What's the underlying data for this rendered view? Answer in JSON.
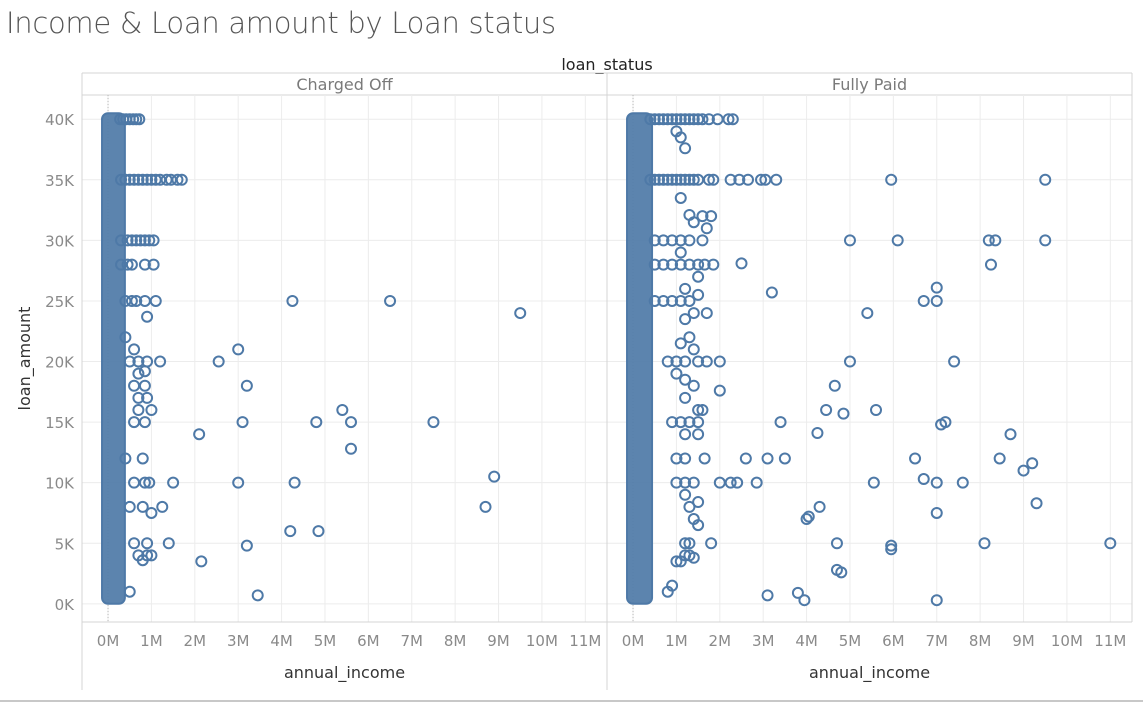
{
  "title": "Income & Loan amount by Loan status",
  "column_header": "loan_status",
  "colors": {
    "mark": "#4e79a7",
    "grid": "#ececec",
    "frame": "#d4d4d4",
    "title": "#555555",
    "tick": "#8a8a8a"
  },
  "chart_data": {
    "type": "scatter",
    "facet_field": "loan_status",
    "xlabel": "annual_income",
    "ylabel": "loan_amount",
    "xlim": [
      -600000,
      11500000
    ],
    "ylim": [
      -1500,
      42000
    ],
    "x_ticks": [
      0,
      1000000,
      2000000,
      3000000,
      4000000,
      5000000,
      6000000,
      7000000,
      8000000,
      9000000,
      10000000,
      11000000
    ],
    "x_tick_labels": [
      "0M",
      "1M",
      "2M",
      "3M",
      "4M",
      "5M",
      "6M",
      "7M",
      "8M",
      "9M",
      "10M",
      "11M"
    ],
    "y_ticks": [
      0,
      5000,
      10000,
      15000,
      20000,
      25000,
      30000,
      35000,
      40000
    ],
    "y_tick_labels": [
      "0K",
      "5K",
      "10K",
      "15K",
      "20K",
      "25K",
      "30K",
      "35K",
      "40K"
    ],
    "grid": true,
    "marker": "open-circle",
    "panels": [
      {
        "name": "Charged Off",
        "dense_band": {
          "x_range": [
            0,
            250000
          ],
          "y_range": [
            500,
            40000
          ]
        },
        "points": [
          [
            280000,
            40000
          ],
          [
            350000,
            40000
          ],
          [
            420000,
            40000
          ],
          [
            500000,
            40000
          ],
          [
            580000,
            40000
          ],
          [
            650000,
            40000
          ],
          [
            720000,
            40000
          ],
          [
            300000,
            35000
          ],
          [
            400000,
            35000
          ],
          [
            500000,
            35000
          ],
          [
            600000,
            35000
          ],
          [
            700000,
            35000
          ],
          [
            800000,
            35000
          ],
          [
            900000,
            35000
          ],
          [
            1000000,
            35000
          ],
          [
            1100000,
            35000
          ],
          [
            1200000,
            35000
          ],
          [
            1350000,
            35000
          ],
          [
            1450000,
            35000
          ],
          [
            1600000,
            35000
          ],
          [
            1700000,
            35000
          ],
          [
            300000,
            30000
          ],
          [
            450000,
            30000
          ],
          [
            550000,
            30000
          ],
          [
            650000,
            30000
          ],
          [
            750000,
            30000
          ],
          [
            850000,
            30000
          ],
          [
            950000,
            30000
          ],
          [
            1050000,
            30000
          ],
          [
            300000,
            28000
          ],
          [
            450000,
            28000
          ],
          [
            550000,
            28000
          ],
          [
            850000,
            28000
          ],
          [
            1050000,
            28000
          ],
          [
            400000,
            25000
          ],
          [
            550000,
            25000
          ],
          [
            650000,
            25000
          ],
          [
            850000,
            25000
          ],
          [
            1100000,
            25000
          ],
          [
            4250000,
            25000
          ],
          [
            6500000,
            25000
          ],
          [
            900000,
            23700
          ],
          [
            9500000,
            24000
          ],
          [
            400000,
            22000
          ],
          [
            600000,
            21000
          ],
          [
            3000000,
            21000
          ],
          [
            500000,
            20000
          ],
          [
            700000,
            20000
          ],
          [
            900000,
            20000
          ],
          [
            1200000,
            20000
          ],
          [
            2550000,
            20000
          ],
          [
            700000,
            19000
          ],
          [
            850000,
            19200
          ],
          [
            600000,
            18000
          ],
          [
            850000,
            18000
          ],
          [
            3200000,
            18000
          ],
          [
            700000,
            17000
          ],
          [
            900000,
            17000
          ],
          [
            700000,
            16000
          ],
          [
            1000000,
            16000
          ],
          [
            5400000,
            16000
          ],
          [
            600000,
            15000
          ],
          [
            850000,
            15000
          ],
          [
            3100000,
            15000
          ],
          [
            4800000,
            15000
          ],
          [
            5600000,
            15000
          ],
          [
            7500000,
            15000
          ],
          [
            2100000,
            14000
          ],
          [
            5600000,
            12800
          ],
          [
            400000,
            12000
          ],
          [
            800000,
            12000
          ],
          [
            600000,
            10000
          ],
          [
            850000,
            10000
          ],
          [
            950000,
            10000
          ],
          [
            1500000,
            10000
          ],
          [
            3000000,
            10000
          ],
          [
            4300000,
            10000
          ],
          [
            8900000,
            10500
          ],
          [
            8700000,
            8000
          ],
          [
            500000,
            8000
          ],
          [
            800000,
            8000
          ],
          [
            1000000,
            7500
          ],
          [
            1250000,
            8000
          ],
          [
            4200000,
            6000
          ],
          [
            4850000,
            6000
          ],
          [
            600000,
            5000
          ],
          [
            900000,
            5000
          ],
          [
            1400000,
            5000
          ],
          [
            3200000,
            4800
          ],
          [
            700000,
            4000
          ],
          [
            800000,
            3600
          ],
          [
            900000,
            4000
          ],
          [
            1000000,
            4000
          ],
          [
            2150000,
            3500
          ],
          [
            3450000,
            700
          ],
          [
            500000,
            1000
          ]
        ]
      },
      {
        "name": "Fully Paid",
        "dense_band": {
          "x_range": [
            0,
            300000
          ],
          "y_range": [
            500,
            40000
          ]
        },
        "points": [
          [
            400000,
            40000
          ],
          [
            500000,
            40000
          ],
          [
            600000,
            40000
          ],
          [
            700000,
            40000
          ],
          [
            800000,
            40000
          ],
          [
            900000,
            40000
          ],
          [
            1000000,
            40000
          ],
          [
            1100000,
            40000
          ],
          [
            1200000,
            40000
          ],
          [
            1300000,
            40000
          ],
          [
            1400000,
            40000
          ],
          [
            1500000,
            40000
          ],
          [
            1600000,
            40000
          ],
          [
            1750000,
            40000
          ],
          [
            1950000,
            40000
          ],
          [
            2200000,
            40000
          ],
          [
            2300000,
            40000
          ],
          [
            1000000,
            39000
          ],
          [
            1100000,
            38500
          ],
          [
            1200000,
            37600
          ],
          [
            400000,
            35000
          ],
          [
            500000,
            35000
          ],
          [
            600000,
            35000
          ],
          [
            700000,
            35000
          ],
          [
            800000,
            35000
          ],
          [
            900000,
            35000
          ],
          [
            1000000,
            35000
          ],
          [
            1100000,
            35000
          ],
          [
            1200000,
            35000
          ],
          [
            1300000,
            35000
          ],
          [
            1400000,
            35000
          ],
          [
            1500000,
            35000
          ],
          [
            1750000,
            35000
          ],
          [
            1850000,
            35000
          ],
          [
            2250000,
            35000
          ],
          [
            2450000,
            35000
          ],
          [
            2650000,
            35000
          ],
          [
            2950000,
            35000
          ],
          [
            3050000,
            35000
          ],
          [
            3300000,
            35000
          ],
          [
            5950000,
            35000
          ],
          [
            9500000,
            35000
          ],
          [
            1100000,
            33500
          ],
          [
            1300000,
            32100
          ],
          [
            1600000,
            32000
          ],
          [
            1800000,
            32000
          ],
          [
            1400000,
            31500
          ],
          [
            1700000,
            31000
          ],
          [
            500000,
            30000
          ],
          [
            700000,
            30000
          ],
          [
            900000,
            30000
          ],
          [
            1100000,
            30000
          ],
          [
            1300000,
            30000
          ],
          [
            1600000,
            30000
          ],
          [
            5000000,
            30000
          ],
          [
            6100000,
            30000
          ],
          [
            8200000,
            30000
          ],
          [
            8350000,
            30000
          ],
          [
            9500000,
            30000
          ],
          [
            1100000,
            29000
          ],
          [
            500000,
            28000
          ],
          [
            700000,
            28000
          ],
          [
            900000,
            28000
          ],
          [
            1100000,
            28000
          ],
          [
            1300000,
            28000
          ],
          [
            1500000,
            28000
          ],
          [
            1650000,
            28000
          ],
          [
            1850000,
            28000
          ],
          [
            2500000,
            28100
          ],
          [
            8250000,
            28000
          ],
          [
            1500000,
            27000
          ],
          [
            1200000,
            26000
          ],
          [
            1500000,
            25500
          ],
          [
            3200000,
            25700
          ],
          [
            7000000,
            26100
          ],
          [
            500000,
            25000
          ],
          [
            700000,
            25000
          ],
          [
            900000,
            25000
          ],
          [
            1100000,
            25000
          ],
          [
            1300000,
            25000
          ],
          [
            6700000,
            25000
          ],
          [
            7000000,
            25000
          ],
          [
            1400000,
            24000
          ],
          [
            1700000,
            24000
          ],
          [
            5400000,
            24000
          ],
          [
            1200000,
            23500
          ],
          [
            1300000,
            22000
          ],
          [
            1100000,
            21500
          ],
          [
            1400000,
            21000
          ],
          [
            800000,
            20000
          ],
          [
            1000000,
            20000
          ],
          [
            1200000,
            20000
          ],
          [
            1500000,
            20000
          ],
          [
            1700000,
            20000
          ],
          [
            2000000,
            20000
          ],
          [
            5000000,
            20000
          ],
          [
            7400000,
            20000
          ],
          [
            1000000,
            19000
          ],
          [
            1200000,
            18500
          ],
          [
            1400000,
            18000
          ],
          [
            2000000,
            17600
          ],
          [
            4650000,
            18000
          ],
          [
            1200000,
            17000
          ],
          [
            1500000,
            16000
          ],
          [
            1600000,
            16000
          ],
          [
            4450000,
            16000
          ],
          [
            5600000,
            16000
          ],
          [
            4850000,
            15700
          ],
          [
            900000,
            15000
          ],
          [
            1100000,
            15000
          ],
          [
            1300000,
            15000
          ],
          [
            1500000,
            15000
          ],
          [
            3400000,
            15000
          ],
          [
            7100000,
            14800
          ],
          [
            7200000,
            15000
          ],
          [
            1200000,
            14000
          ],
          [
            1500000,
            14000
          ],
          [
            4250000,
            14100
          ],
          [
            8700000,
            14000
          ],
          [
            1000000,
            12000
          ],
          [
            1200000,
            12000
          ],
          [
            1650000,
            12000
          ],
          [
            2600000,
            12000
          ],
          [
            3100000,
            12000
          ],
          [
            3500000,
            12000
          ],
          [
            6500000,
            12000
          ],
          [
            8450000,
            12000
          ],
          [
            9200000,
            11600
          ],
          [
            9000000,
            11000
          ],
          [
            1000000,
            10000
          ],
          [
            1200000,
            10000
          ],
          [
            1400000,
            10000
          ],
          [
            2000000,
            10000
          ],
          [
            2250000,
            10000
          ],
          [
            2400000,
            10000
          ],
          [
            2850000,
            10000
          ],
          [
            5550000,
            10000
          ],
          [
            6700000,
            10300
          ],
          [
            7000000,
            10000
          ],
          [
            7600000,
            10000
          ],
          [
            9300000,
            8300
          ],
          [
            1200000,
            9000
          ],
          [
            1500000,
            8400
          ],
          [
            1300000,
            8000
          ],
          [
            4300000,
            8000
          ],
          [
            4050000,
            7200
          ],
          [
            4000000,
            7000
          ],
          [
            7000000,
            7500
          ],
          [
            1400000,
            7000
          ],
          [
            1500000,
            6500
          ],
          [
            1200000,
            5000
          ],
          [
            1300000,
            5000
          ],
          [
            1800000,
            5000
          ],
          [
            4700000,
            5000
          ],
          [
            5950000,
            4800
          ],
          [
            5950000,
            4500
          ],
          [
            8100000,
            5000
          ],
          [
            11000000,
            5000
          ],
          [
            1200000,
            4000
          ],
          [
            1300000,
            4000
          ],
          [
            1000000,
            3500
          ],
          [
            1100000,
            3500
          ],
          [
            1400000,
            3800
          ],
          [
            4700000,
            2800
          ],
          [
            4800000,
            2600
          ],
          [
            900000,
            1500
          ],
          [
            800000,
            1000
          ],
          [
            3100000,
            700
          ],
          [
            3800000,
            900
          ],
          [
            3950000,
            300
          ],
          [
            7000000,
            300
          ]
        ]
      }
    ]
  }
}
